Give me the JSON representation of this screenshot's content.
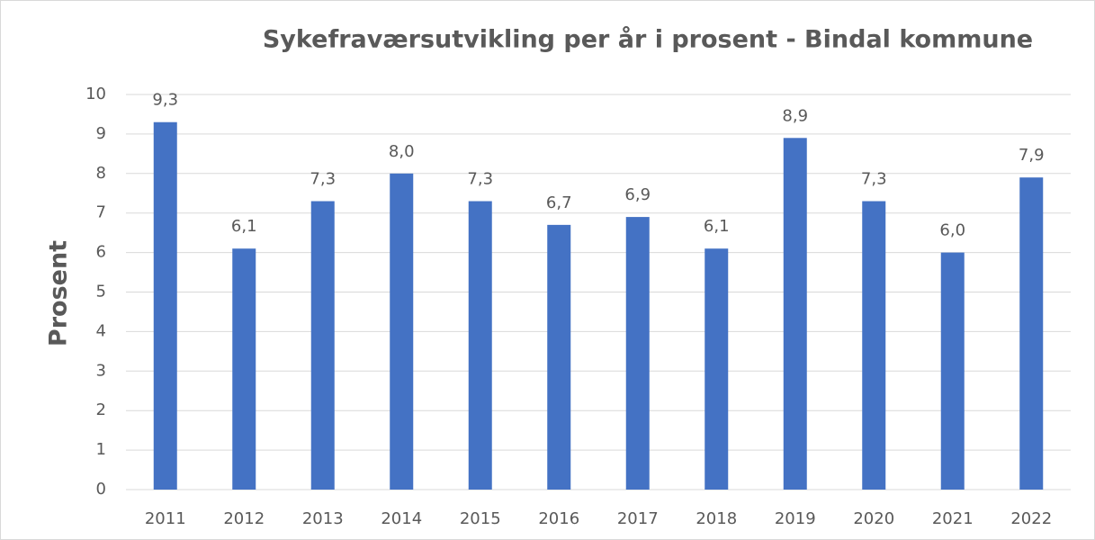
{
  "chart_data": {
    "type": "bar",
    "title": "Sykefraværsutvikling per år i prosent - Bindal kommune",
    "y_label": "Prosent",
    "categories": [
      "2011",
      "2012",
      "2013",
      "2014",
      "2015",
      "2016",
      "2017",
      "2018",
      "2019",
      "2020",
      "2021",
      "2022"
    ],
    "values": [
      9.3,
      6.1,
      7.3,
      8.0,
      7.3,
      6.7,
      6.9,
      6.1,
      8.9,
      7.3,
      6.0,
      7.9
    ],
    "value_labels": [
      "9,3",
      "6,1",
      "7,3",
      "8,0",
      "7,3",
      "6,7",
      "6,9",
      "6,1",
      "8,9",
      "7,3",
      "6,0",
      "7,9"
    ],
    "color": "#4472c4",
    "ylim": [
      0,
      10
    ],
    "yticks": [
      0,
      1,
      2,
      3,
      4,
      5,
      6,
      7,
      8,
      9,
      10
    ],
    "grid": true
  }
}
